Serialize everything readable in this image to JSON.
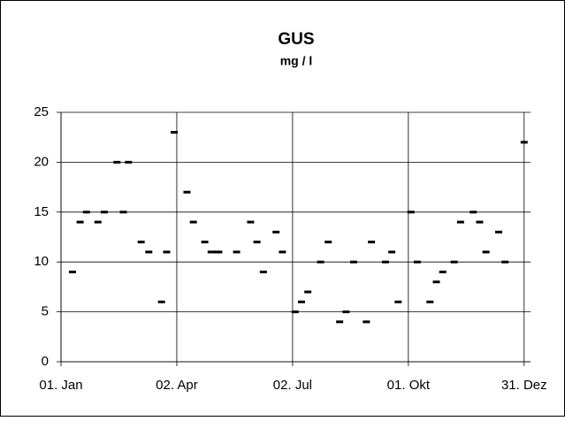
{
  "chart_data": {
    "type": "scatter",
    "title": "GUS",
    "subtitle": "mg / l",
    "x": [
      10,
      16,
      21,
      30,
      35,
      45,
      50,
      54,
      64,
      70,
      80,
      84,
      90,
      100,
      105,
      114,
      119,
      123,
      125,
      139,
      150,
      155,
      160,
      170,
      175,
      185,
      190,
      195,
      205,
      211,
      220,
      225,
      231,
      241,
      245,
      256,
      261,
      266,
      276,
      281,
      291,
      296,
      301,
      310,
      315,
      325,
      330,
      335,
      345,
      350,
      365
    ],
    "values": [
      9,
      14,
      15,
      14,
      15,
      20,
      15,
      20,
      12,
      11,
      6,
      11,
      23,
      17,
      14,
      12,
      11,
      11,
      11,
      11,
      14,
      12,
      9,
      13,
      11,
      5,
      6,
      7,
      10,
      12,
      4,
      5,
      10,
      4,
      12,
      10,
      11,
      6,
      15,
      10,
      6,
      8,
      9,
      10,
      14,
      15,
      14,
      11,
      13,
      10,
      22
    ],
    "color": "#000000",
    "xlim": [
      1,
      370
    ],
    "xticks": [
      {
        "value": 1,
        "label": "01. Jan"
      },
      {
        "value": 92,
        "label": "02. Apr"
      },
      {
        "value": 183,
        "label": "02. Jul"
      },
      {
        "value": 274,
        "label": "01. Okt"
      },
      {
        "value": 365,
        "label": "31. Dez"
      }
    ],
    "ylim": [
      0,
      25
    ],
    "yticks": [
      0,
      5,
      10,
      15,
      20,
      25
    ],
    "grid": true
  }
}
